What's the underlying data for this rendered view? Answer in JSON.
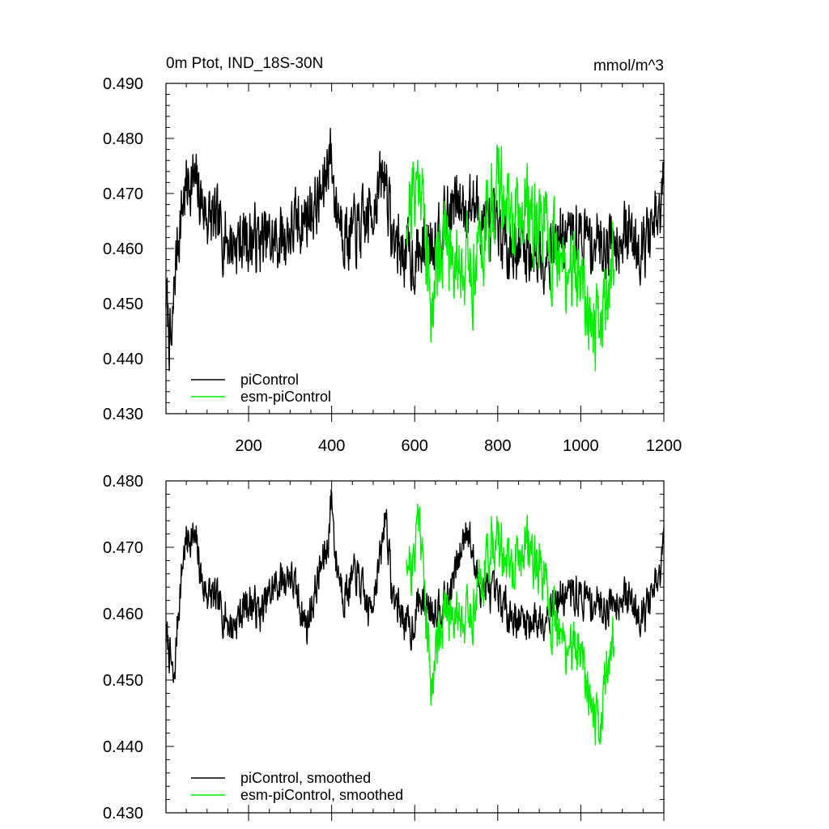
{
  "chart_data": [
    {
      "type": "line",
      "title": "0m Ptot, IND_18S-30N",
      "units": "mmol/m^3",
      "xlim": [
        1,
        1200
      ],
      "ylim": [
        0.43,
        0.49
      ],
      "xticks": [
        200,
        400,
        600,
        800,
        1000,
        1200
      ],
      "yticks": [
        "0.430",
        "0.440",
        "0.450",
        "0.460",
        "0.470",
        "0.480",
        "0.490"
      ],
      "legend_position": "bottom-left",
      "series": [
        {
          "name": "piControl",
          "color": "#000000",
          "x_start": 1,
          "x_end": 1200,
          "mean": 0.4625,
          "noise": 0.0065,
          "seed": 7,
          "anchors": [
            [
              1,
              0.452
            ],
            [
              8,
              0.445
            ],
            [
              15,
              0.441
            ],
            [
              22,
              0.455
            ],
            [
              30,
              0.462
            ],
            [
              45,
              0.47
            ],
            [
              60,
              0.473
            ],
            [
              80,
              0.47
            ],
            [
              100,
              0.466
            ],
            [
              160,
              0.461
            ],
            [
              200,
              0.462
            ],
            [
              260,
              0.461
            ],
            [
              300,
              0.463
            ],
            [
              340,
              0.466
            ],
            [
              380,
              0.47
            ],
            [
              395,
              0.479
            ],
            [
              410,
              0.468
            ],
            [
              440,
              0.462
            ],
            [
              480,
              0.464
            ],
            [
              530,
              0.474
            ],
            [
              545,
              0.462
            ],
            [
              580,
              0.459
            ],
            [
              600,
              0.458
            ],
            [
              640,
              0.462
            ],
            [
              700,
              0.468
            ],
            [
              740,
              0.468
            ],
            [
              800,
              0.462
            ],
            [
              860,
              0.46
            ],
            [
              900,
              0.459
            ],
            [
              950,
              0.462
            ],
            [
              1000,
              0.462
            ],
            [
              1050,
              0.461
            ],
            [
              1100,
              0.463
            ],
            [
              1150,
              0.461
            ],
            [
              1190,
              0.465
            ],
            [
              1200,
              0.472
            ]
          ]
        },
        {
          "name": "esm-piControl",
          "color": "#00ee00",
          "x_start": 580,
          "x_end": 1080,
          "mean": 0.462,
          "noise": 0.0085,
          "seed": 21,
          "anchors": [
            [
              580,
              0.467
            ],
            [
              600,
              0.471
            ],
            [
              615,
              0.474
            ],
            [
              630,
              0.458
            ],
            [
              640,
              0.449
            ],
            [
              660,
              0.462
            ],
            [
              700,
              0.459
            ],
            [
              740,
              0.456
            ],
            [
              780,
              0.467
            ],
            [
              800,
              0.472
            ],
            [
              840,
              0.463
            ],
            [
              870,
              0.468
            ],
            [
              900,
              0.464
            ],
            [
              950,
              0.456
            ],
            [
              1000,
              0.456
            ],
            [
              1040,
              0.444
            ],
            [
              1060,
              0.452
            ],
            [
              1080,
              0.458
            ]
          ]
        }
      ]
    },
    {
      "type": "line",
      "title": "",
      "xlim": [
        1,
        1200
      ],
      "ylim": [
        0.43,
        0.48
      ],
      "xticks": [
        200,
        400,
        600,
        800,
        1000,
        1200
      ],
      "yticks": [
        "0.430",
        "0.440",
        "0.450",
        "0.460",
        "0.470",
        "0.480"
      ],
      "legend_position": "bottom-left",
      "series": [
        {
          "name": "piControl, smoothed",
          "color": "#000000",
          "x_start": 1,
          "x_end": 1200,
          "mean": 0.4625,
          "noise": 0.0032,
          "seed": 7,
          "anchors": [
            [
              1,
              0.457
            ],
            [
              10,
              0.454
            ],
            [
              20,
              0.449
            ],
            [
              30,
              0.46
            ],
            [
              45,
              0.47
            ],
            [
              60,
              0.472
            ],
            [
              75,
              0.47
            ],
            [
              90,
              0.464
            ],
            [
              120,
              0.462
            ],
            [
              160,
              0.458
            ],
            [
              200,
              0.462
            ],
            [
              230,
              0.46
            ],
            [
              260,
              0.464
            ],
            [
              300,
              0.466
            ],
            [
              340,
              0.458
            ],
            [
              370,
              0.466
            ],
            [
              390,
              0.47
            ],
            [
              400,
              0.478
            ],
            [
              410,
              0.468
            ],
            [
              430,
              0.463
            ],
            [
              460,
              0.466
            ],
            [
              490,
              0.46
            ],
            [
              520,
              0.469
            ],
            [
              530,
              0.476
            ],
            [
              545,
              0.463
            ],
            [
              570,
              0.46
            ],
            [
              590,
              0.457
            ],
            [
              610,
              0.462
            ],
            [
              640,
              0.461
            ],
            [
              680,
              0.462
            ],
            [
              710,
              0.469
            ],
            [
              725,
              0.474
            ],
            [
              750,
              0.465
            ],
            [
              800,
              0.462
            ],
            [
              850,
              0.459
            ],
            [
              900,
              0.459
            ],
            [
              940,
              0.462
            ],
            [
              980,
              0.463
            ],
            [
              1020,
              0.462
            ],
            [
              1060,
              0.461
            ],
            [
              1100,
              0.463
            ],
            [
              1150,
              0.46
            ],
            [
              1190,
              0.465
            ],
            [
              1200,
              0.471
            ]
          ]
        },
        {
          "name": "esm-piControl, smoothed",
          "color": "#00ee00",
          "x_start": 580,
          "x_end": 1080,
          "mean": 0.462,
          "noise": 0.0045,
          "seed": 21,
          "anchors": [
            [
              580,
              0.47
            ],
            [
              595,
              0.466
            ],
            [
              605,
              0.474
            ],
            [
              612,
              0.476
            ],
            [
              625,
              0.462
            ],
            [
              640,
              0.449
            ],
            [
              660,
              0.459
            ],
            [
              700,
              0.461
            ],
            [
              730,
              0.459
            ],
            [
              760,
              0.465
            ],
            [
              790,
              0.472
            ],
            [
              810,
              0.469
            ],
            [
              840,
              0.466
            ],
            [
              870,
              0.471
            ],
            [
              900,
              0.467
            ],
            [
              930,
              0.459
            ],
            [
              960,
              0.455
            ],
            [
              1000,
              0.455
            ],
            [
              1030,
              0.446
            ],
            [
              1045,
              0.441
            ],
            [
              1060,
              0.452
            ],
            [
              1080,
              0.456
            ]
          ]
        }
      ]
    }
  ]
}
